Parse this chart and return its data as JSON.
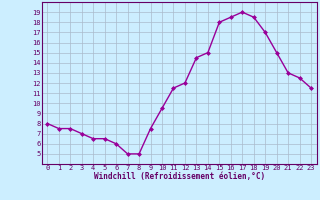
{
  "x": [
    0,
    1,
    2,
    3,
    4,
    5,
    6,
    7,
    8,
    9,
    10,
    11,
    12,
    13,
    14,
    15,
    16,
    17,
    18,
    19,
    20,
    21,
    22,
    23
  ],
  "y": [
    8.0,
    7.5,
    7.5,
    7.0,
    6.5,
    6.5,
    6.0,
    5.0,
    5.0,
    7.5,
    9.5,
    11.5,
    12.0,
    14.5,
    15.0,
    18.0,
    18.5,
    19.0,
    18.5,
    17.0,
    15.0,
    13.0,
    12.5,
    11.5
  ],
  "line_color": "#990099",
  "marker": "D",
  "marker_size": 2.0,
  "bg_color": "#cceeff",
  "grid_color": "#aabbcc",
  "xlabel": "Windchill (Refroidissement éolien,°C)",
  "xlabel_color": "#660066",
  "tick_color": "#660066",
  "ylim": [
    4,
    20
  ],
  "xlim": [
    -0.5,
    23.5
  ],
  "yticks": [
    5,
    6,
    7,
    8,
    9,
    10,
    11,
    12,
    13,
    14,
    15,
    16,
    17,
    18,
    19
  ],
  "xticks": [
    0,
    1,
    2,
    3,
    4,
    5,
    6,
    7,
    8,
    9,
    10,
    11,
    12,
    13,
    14,
    15,
    16,
    17,
    18,
    19,
    20,
    21,
    22,
    23
  ],
  "spine_color": "#660066",
  "tick_fontsize": 5.0,
  "xlabel_fontsize": 5.5,
  "line_width": 1.0
}
